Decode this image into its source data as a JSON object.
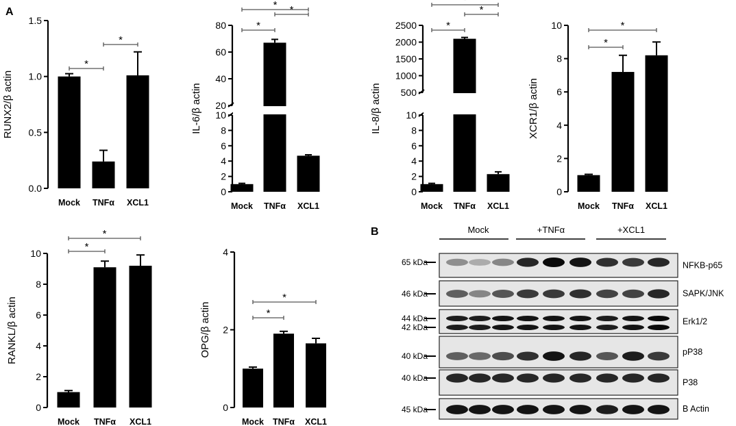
{
  "panel_labels": {
    "a": "A",
    "b": "B"
  },
  "chart_data": [
    {
      "id": "runx2",
      "type": "bar",
      "ylabel": "RUNX2/β actin",
      "categories": [
        "Mock",
        "TNFα",
        "XCL1"
      ],
      "values": [
        1.0,
        0.24,
        1.01
      ],
      "errors": [
        0.025,
        0.1,
        0.21
      ],
      "ylim": [
        0,
        1.5
      ],
      "yticks": [
        "0.0",
        "0.5",
        "1.0",
        "1.5"
      ],
      "significance": [
        {
          "from": 0,
          "to": 1,
          "label": "*"
        },
        {
          "from": 1,
          "to": 2,
          "label": "*"
        }
      ]
    },
    {
      "id": "il6",
      "type": "bar",
      "ylabel": "IL-6/β actin",
      "categories": [
        "Mock",
        "TNFα",
        "XCL1"
      ],
      "values": [
        1.0,
        67,
        4.7
      ],
      "errors": [
        0.1,
        2.5,
        0.12
      ],
      "ylim": [
        0,
        80
      ],
      "axis_break": [
        10,
        20
      ],
      "yticks_upper": [
        "20",
        "40",
        "60",
        "80"
      ],
      "yticks_lower": [
        "0",
        "2",
        "4",
        "6",
        "8",
        "10"
      ],
      "significance": [
        {
          "from": 0,
          "to": 1,
          "label": "*"
        },
        {
          "from": 1,
          "to": 2,
          "label": "*"
        },
        {
          "from": 0,
          "to": 2,
          "label": "*"
        }
      ]
    },
    {
      "id": "il8",
      "type": "bar",
      "ylabel": "IL-8/β actin",
      "categories": [
        "Mock",
        "TNFα",
        "XCL1"
      ],
      "values": [
        1.0,
        2100,
        2.3
      ],
      "errors": [
        0.1,
        40,
        0.3
      ],
      "ylim": [
        0,
        2500
      ],
      "axis_break": [
        10,
        500
      ],
      "yticks_upper": [
        "500",
        "1000",
        "1500",
        "2000",
        "2500"
      ],
      "yticks_lower": [
        "0",
        "2",
        "4",
        "6",
        "8",
        "10"
      ],
      "significance": [
        {
          "from": 0,
          "to": 1,
          "label": "*"
        },
        {
          "from": 1,
          "to": 2,
          "label": "*"
        },
        {
          "from": 0,
          "to": 2,
          "label": "*"
        }
      ]
    },
    {
      "id": "xcr1",
      "type": "bar",
      "ylabel": "XCR1/β actin",
      "categories": [
        "Mock",
        "TNFα",
        "XCL1"
      ],
      "values": [
        1.0,
        7.2,
        8.2
      ],
      "errors": [
        0.05,
        1.0,
        0.8
      ],
      "ylim": [
        0,
        10
      ],
      "yticks": [
        "0",
        "2",
        "4",
        "6",
        "8",
        "10"
      ],
      "significance": [
        {
          "from": 0,
          "to": 1,
          "label": "*"
        },
        {
          "from": 0,
          "to": 2,
          "label": "*"
        }
      ]
    },
    {
      "id": "rankl",
      "type": "bar",
      "ylabel": "RANKL/β actin",
      "categories": [
        "Mock",
        "TNFα",
        "XCL1"
      ],
      "values": [
        1.0,
        9.1,
        9.2
      ],
      "errors": [
        0.1,
        0.4,
        0.7
      ],
      "ylim": [
        0,
        10
      ],
      "yticks": [
        "0",
        "2",
        "4",
        "6",
        "8",
        "10"
      ],
      "significance": [
        {
          "from": 0,
          "to": 1,
          "label": "*"
        },
        {
          "from": 0,
          "to": 2,
          "label": "*"
        }
      ]
    },
    {
      "id": "opg",
      "type": "bar",
      "ylabel": "OPG/β actin",
      "categories": [
        "Mock",
        "TNFα",
        "XCL1"
      ],
      "values": [
        1.0,
        1.9,
        1.65
      ],
      "errors": [
        0.04,
        0.06,
        0.13
      ],
      "ylim": [
        0,
        4
      ],
      "yticks": [
        "0",
        "2",
        "4"
      ],
      "significance": [
        {
          "from": 0,
          "to": 1,
          "label": "*"
        },
        {
          "from": 0,
          "to": 2,
          "label": "*"
        }
      ]
    }
  ],
  "western_blot": {
    "groups": [
      "Mock",
      "+TNFα",
      "+XCL1"
    ],
    "rows": [
      {
        "markers": [
          "65 kDa"
        ],
        "protein": "NFKB-p65",
        "intensity": [
          0.3,
          0.15,
          0.35,
          0.85,
          1.0,
          0.95,
          0.8,
          0.75,
          0.85
        ]
      },
      {
        "markers": [
          "46 kDa"
        ],
        "protein": "SAPK/JNK",
        "intensity": [
          0.55,
          0.35,
          0.6,
          0.75,
          0.75,
          0.8,
          0.7,
          0.7,
          0.85
        ]
      },
      {
        "markers": [
          "44 kDa",
          "42 kDa"
        ],
        "protein": "Erk1/2",
        "intensity": [
          0.9,
          0.9,
          0.95,
          0.95,
          0.95,
          0.95,
          0.9,
          0.95,
          1.0
        ]
      },
      {
        "markers": [
          "40 kDa"
        ],
        "protein": "pP38",
        "intensity": [
          0.55,
          0.5,
          0.65,
          0.8,
          0.95,
          0.85,
          0.6,
          0.9,
          0.75
        ]
      },
      {
        "markers": [
          "40 kDa"
        ],
        "protein": "P38",
        "intensity": [
          0.85,
          0.85,
          0.85,
          0.85,
          0.85,
          0.85,
          0.85,
          0.85,
          0.85
        ]
      },
      {
        "markers": [
          "45 kDa"
        ],
        "protein": "B Actin",
        "intensity": [
          0.95,
          0.95,
          0.95,
          0.95,
          0.95,
          0.95,
          0.9,
          0.95,
          0.95
        ]
      }
    ]
  }
}
